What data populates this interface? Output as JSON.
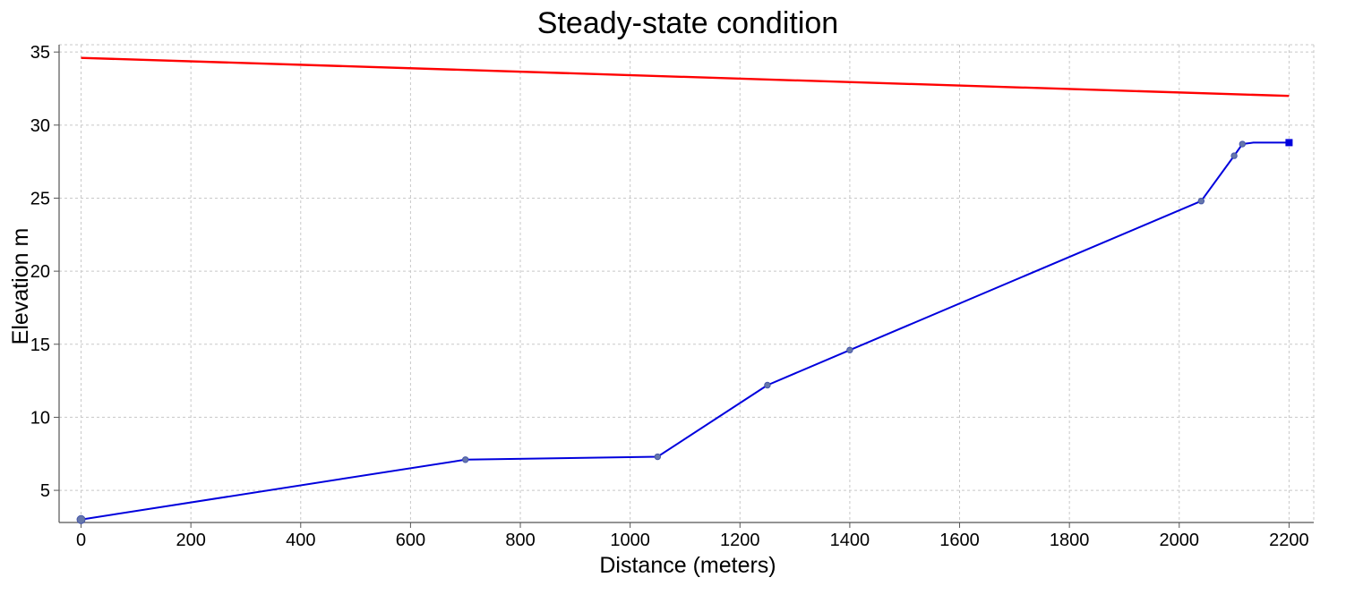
{
  "chart_data": {
    "type": "line",
    "title": "Steady-state condition",
    "xlabel": "Distance (meters)",
    "ylabel": "Elevation m",
    "xlim": [
      -40,
      2245
    ],
    "ylim": [
      2.8,
      35.5
    ],
    "xticks": [
      0,
      200,
      400,
      600,
      800,
      1000,
      1200,
      1400,
      1600,
      1800,
      2000,
      2200
    ],
    "yticks": [
      5,
      10,
      15,
      20,
      25,
      30,
      35
    ],
    "grid": true,
    "legend": "none",
    "series": [
      {
        "color": "#ff0000",
        "x": [
          0,
          2200
        ],
        "y": [
          34.6,
          32.0
        ]
      },
      {
        "color": "#0000dd",
        "x": [
          0,
          700,
          1050,
          1250,
          1400,
          2040,
          2100,
          2115,
          2135,
          2200
        ],
        "y": [
          3.0,
          7.1,
          7.3,
          12.2,
          14.6,
          24.8,
          27.9,
          28.7,
          28.8,
          28.8
        ],
        "markers": [
          0,
          700,
          1050,
          1250,
          1400,
          2040,
          2100,
          2115,
          2200
        ]
      }
    ]
  }
}
